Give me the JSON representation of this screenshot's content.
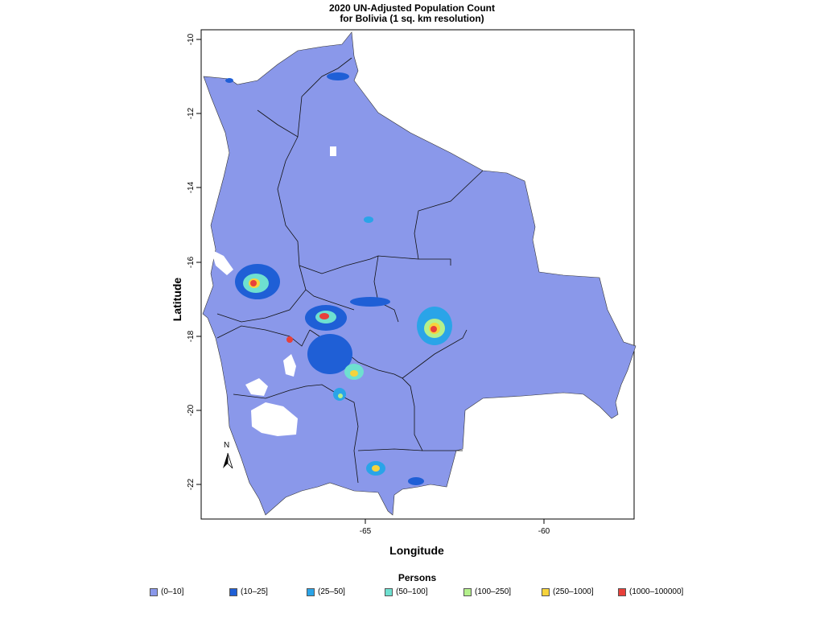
{
  "title_line1": "2020 UN-Adjusted Population Count",
  "title_line2": "for Bolivia (1 sq. km resolution)",
  "xlabel": "Longitude",
  "ylabel": "Latitude",
  "x_ticks": [
    "-65",
    "-60"
  ],
  "y_ticks": [
    "-10",
    "-12",
    "-14",
    "-16",
    "-18",
    "-20",
    "-22"
  ],
  "north_label": "N",
  "legend": {
    "title": "Persons",
    "items": [
      {
        "label": "(0–10]",
        "color": "#8a98ea"
      },
      {
        "label": "(10–25]",
        "color": "#1f5fd6"
      },
      {
        "label": "(25–50]",
        "color": "#2aa4e8"
      },
      {
        "label": "(50–100]",
        "color": "#6ee0d0"
      },
      {
        "label": "(100–250]",
        "color": "#b4f08c"
      },
      {
        "label": "(250–1000]",
        "color": "#f6d33c"
      },
      {
        "label": "(1000–100000]",
        "color": "#e8403a"
      }
    ]
  },
  "map_extent": {
    "lon": [
      -69.6,
      -57.5
    ],
    "lat": [
      -22.9,
      -9.7
    ]
  }
}
